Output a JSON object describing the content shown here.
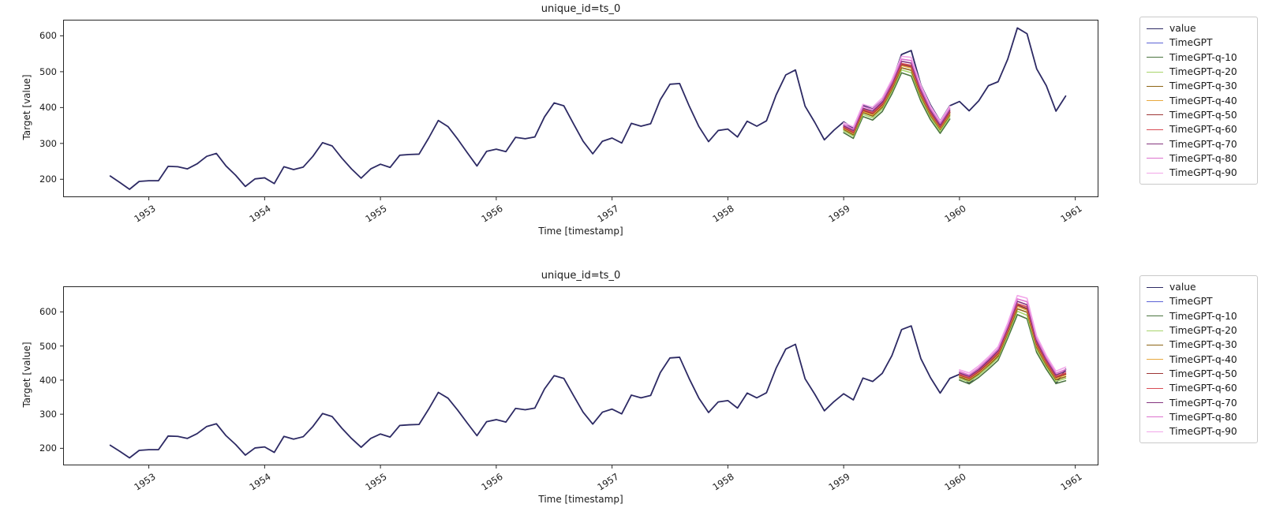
{
  "figure": {
    "background": "#ffffff",
    "text_color": "#1a1a1a",
    "spine_color": "#262626"
  },
  "chart_data": [
    {
      "type": "line",
      "title": "unique_id=ts_0",
      "xlabel": "Time [timestamp]",
      "ylabel": "Target [value]",
      "xticks": [
        1953,
        1954,
        1955,
        1956,
        1957,
        1958,
        1959,
        1960,
        1961
      ],
      "yticks": [
        200,
        300,
        400,
        500,
        600
      ],
      "xlim": [
        1952.26,
        1961.2
      ],
      "ylim": [
        150,
        645
      ],
      "grid": false,
      "legend_position": "outside-right",
      "history": {
        "name": "value",
        "color": "#2d2a64",
        "start": "1952-09",
        "frequency": "monthly",
        "values": [
          209,
          191,
          172,
          194,
          196,
          196,
          236,
          235,
          229,
          243,
          264,
          272,
          237,
          211,
          180,
          201,
          204,
          188,
          235,
          227,
          234,
          264,
          302,
          293,
          259,
          229,
          203,
          229,
          242,
          233,
          267,
          269,
          270,
          315,
          364,
          347,
          312,
          274,
          237,
          278,
          284,
          277,
          317,
          313,
          318,
          374,
          413,
          405,
          355,
          306,
          271,
          306,
          315,
          301,
          356,
          348,
          355,
          422,
          465,
          467,
          404,
          347,
          305,
          336,
          340,
          318,
          362,
          348,
          363,
          435,
          491,
          505,
          404,
          359,
          310,
          337,
          360,
          342,
          406,
          396,
          420,
          472,
          548,
          559,
          463,
          407,
          362,
          405,
          417,
          391,
          419,
          461,
          472,
          535,
          622,
          606,
          508,
          461,
          390,
          432
        ]
      },
      "forecast": {
        "start": "1959-01",
        "frequency": "monthly",
        "series": [
          {
            "name": "TimeGPT",
            "color": "#5c62d6",
            "values": [
              344,
              330,
              392,
              383,
              408,
              458,
              520,
              514,
              440,
              385,
              345,
              386
            ]
          },
          {
            "name": "TimeGPT-q-10",
            "color": "#4a743e",
            "values": [
              330,
              314,
              375,
              365,
              389,
              438,
              497,
              488,
              418,
              366,
              328,
              368
            ]
          },
          {
            "name": "TimeGPT-q-20",
            "color": "#a8d46a",
            "values": [
              335,
              320,
              381,
              371,
              396,
              445,
              505,
              497,
              426,
              373,
              334,
              374
            ]
          },
          {
            "name": "TimeGPT-q-30",
            "color": "#8d6414",
            "values": [
              339,
              324,
              386,
              376,
              401,
              450,
              511,
              504,
              432,
              378,
              339,
              379
            ]
          },
          {
            "name": "TimeGPT-q-40",
            "color": "#e8a93e",
            "values": [
              342,
              328,
              389,
              380,
              405,
              455,
              517,
              510,
              437,
              382,
              342,
              383
            ]
          },
          {
            "name": "TimeGPT-q-50",
            "color": "#9e3535",
            "values": [
              344,
              330,
              392,
              383,
              408,
              458,
              520,
              514,
              440,
              385,
              345,
              386
            ]
          },
          {
            "name": "TimeGPT-q-60",
            "color": "#d94c55",
            "values": [
              346,
              332,
              395,
              386,
              411,
              461,
              523,
              518,
              443,
              388,
              348,
              389
            ]
          },
          {
            "name": "TimeGPT-q-70",
            "color": "#84347e",
            "values": [
              349,
              336,
              398,
              390,
              415,
              466,
              529,
              524,
              448,
              392,
              351,
              393
            ]
          },
          {
            "name": "TimeGPT-q-80",
            "color": "#dd72ce",
            "values": [
              353,
              340,
              403,
              395,
              420,
              471,
              535,
              531,
              454,
              397,
              356,
              398
            ]
          },
          {
            "name": "TimeGPT-q-90",
            "color": "#f2a6e9",
            "values": [
              358,
              346,
              409,
              401,
              427,
              478,
              543,
              540,
              462,
              404,
              362,
              404
            ]
          }
        ]
      }
    },
    {
      "type": "line",
      "title": "unique_id=ts_0",
      "xlabel": "Time [timestamp]",
      "ylabel": "Target [value]",
      "xticks": [
        1953,
        1954,
        1955,
        1956,
        1957,
        1958,
        1959,
        1960,
        1961
      ],
      "yticks": [
        200,
        300,
        400,
        500,
        600
      ],
      "xlim": [
        1952.26,
        1961.2
      ],
      "ylim": [
        150,
        675
      ],
      "grid": false,
      "legend_position": "outside-right",
      "history": {
        "name": "value",
        "color": "#2d2a64",
        "start": "1952-09",
        "frequency": "monthly",
        "values": [
          209,
          191,
          172,
          194,
          196,
          196,
          236,
          235,
          229,
          243,
          264,
          272,
          237,
          211,
          180,
          201,
          204,
          188,
          235,
          227,
          234,
          264,
          302,
          293,
          259,
          229,
          203,
          229,
          242,
          233,
          267,
          269,
          270,
          315,
          364,
          347,
          312,
          274,
          237,
          278,
          284,
          277,
          317,
          313,
          318,
          374,
          413,
          405,
          355,
          306,
          271,
          306,
          315,
          301,
          356,
          348,
          355,
          422,
          465,
          467,
          404,
          347,
          305,
          336,
          340,
          318,
          362,
          348,
          363,
          435,
          491,
          505,
          404,
          359,
          310,
          337,
          360,
          342,
          406,
          396,
          420,
          472,
          548,
          559,
          463,
          407,
          362,
          405,
          417,
          391,
          419,
          461,
          472,
          535,
          622,
          606,
          508,
          461,
          390,
          432
        ]
      },
      "forecast": {
        "start": "1960-01",
        "frequency": "monthly",
        "series": [
          {
            "name": "TimeGPT",
            "color": "#5c62d6",
            "values": [
              415,
              405,
              425,
              450,
              478,
              545,
              620,
              610,
              505,
              452,
              408,
              418
            ]
          },
          {
            "name": "TimeGPT-q-10",
            "color": "#4a743e",
            "values": [
              400,
              389,
              408,
              432,
              458,
              523,
              592,
              580,
              481,
              432,
              390,
              398
            ]
          },
          {
            "name": "TimeGPT-q-20",
            "color": "#a8d46a",
            "values": [
              405,
              395,
              414,
              438,
              465,
              531,
              602,
              590,
              489,
              439,
              396,
              405
            ]
          },
          {
            "name": "TimeGPT-q-30",
            "color": "#8d6414",
            "values": [
              409,
              399,
              419,
              443,
              470,
              537,
              609,
              599,
              496,
              444,
              401,
              410
            ]
          },
          {
            "name": "TimeGPT-q-40",
            "color": "#e8a93e",
            "values": [
              413,
              403,
              422,
              447,
              475,
              542,
              616,
              605,
              501,
              449,
              405,
              415
            ]
          },
          {
            "name": "TimeGPT-q-50",
            "color": "#9e3535",
            "values": [
              415,
              405,
              425,
              450,
              478,
              545,
              620,
              610,
              505,
              452,
              408,
              418
            ]
          },
          {
            "name": "TimeGPT-q-60",
            "color": "#d94c55",
            "values": [
              417,
              407,
              428,
              453,
              481,
              548,
              624,
              615,
              509,
              455,
              411,
              421
            ]
          },
          {
            "name": "TimeGPT-q-70",
            "color": "#84347e",
            "values": [
              421,
              411,
              431,
              457,
              486,
              553,
              631,
              621,
              514,
              460,
              415,
              426
            ]
          },
          {
            "name": "TimeGPT-q-80",
            "color": "#dd72ce",
            "values": [
              425,
              415,
              436,
              462,
              491,
              559,
              638,
              630,
              521,
              465,
              420,
              431
            ]
          },
          {
            "name": "TimeGPT-q-90",
            "color": "#f2a6e9",
            "values": [
              430,
              421,
              442,
              468,
              498,
              567,
              648,
              640,
              529,
              472,
              426,
              438
            ]
          }
        ]
      }
    }
  ]
}
